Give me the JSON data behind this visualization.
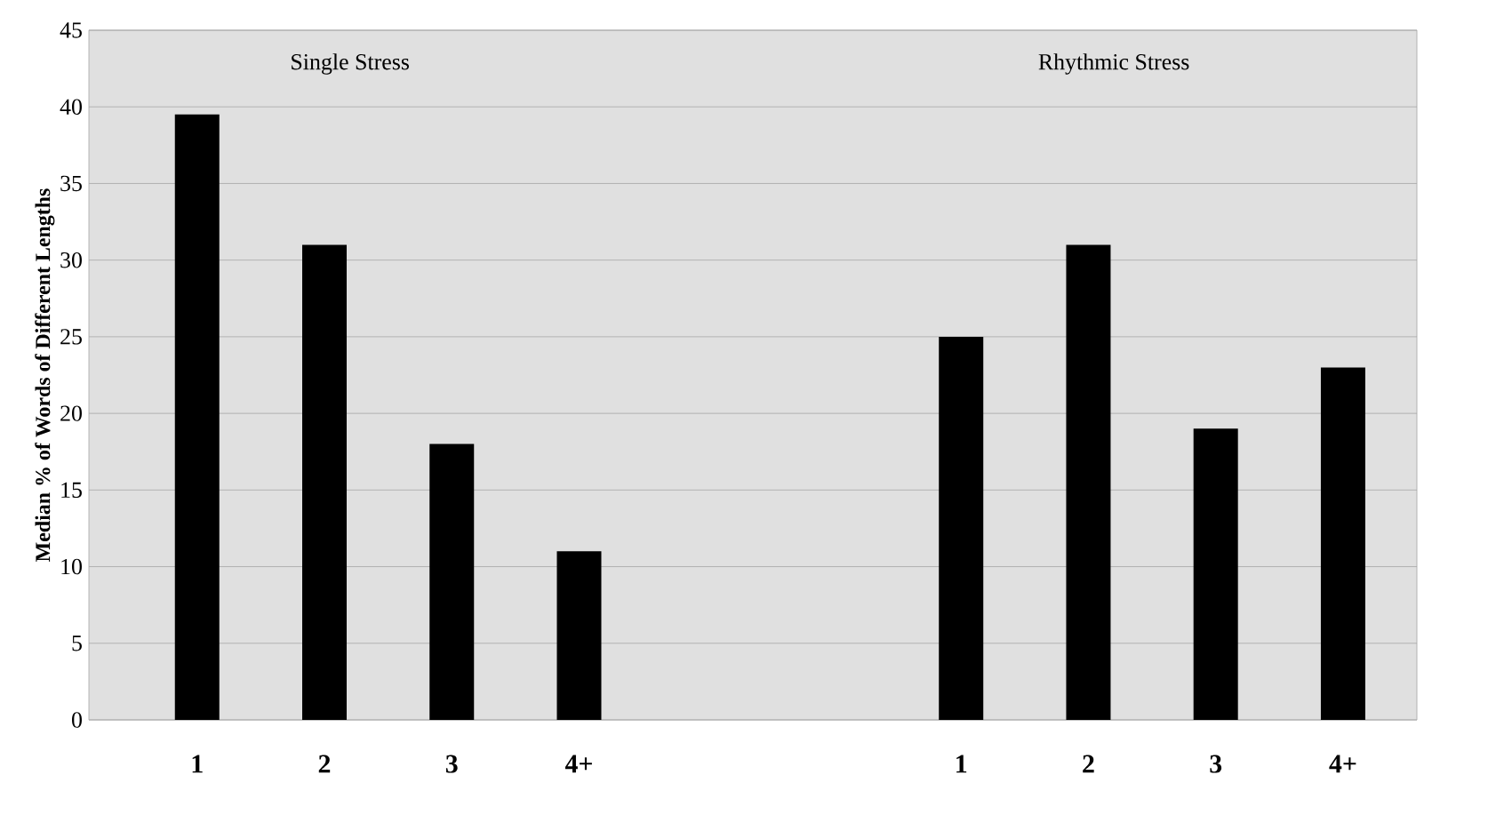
{
  "chart_data": {
    "type": "bar",
    "ylabel": "**Median % of Words of Different Lengths**",
    "categories": [
      "1",
      "2",
      "3",
      "4+",
      null,
      null,
      "1",
      "2",
      "3",
      "4+"
    ],
    "values": [
      39.5,
      31,
      18,
      11,
      null,
      null,
      25,
      31,
      19,
      23
    ],
    "color": "#000000",
    "ylim": [
      0,
      45
    ],
    "yticks": [
      0,
      5,
      10,
      15,
      20,
      25,
      30,
      35,
      40,
      45
    ],
    "grid": "y",
    "annotations": [
      "Single Stress",
      "Rhythmic Stress"
    ]
  }
}
